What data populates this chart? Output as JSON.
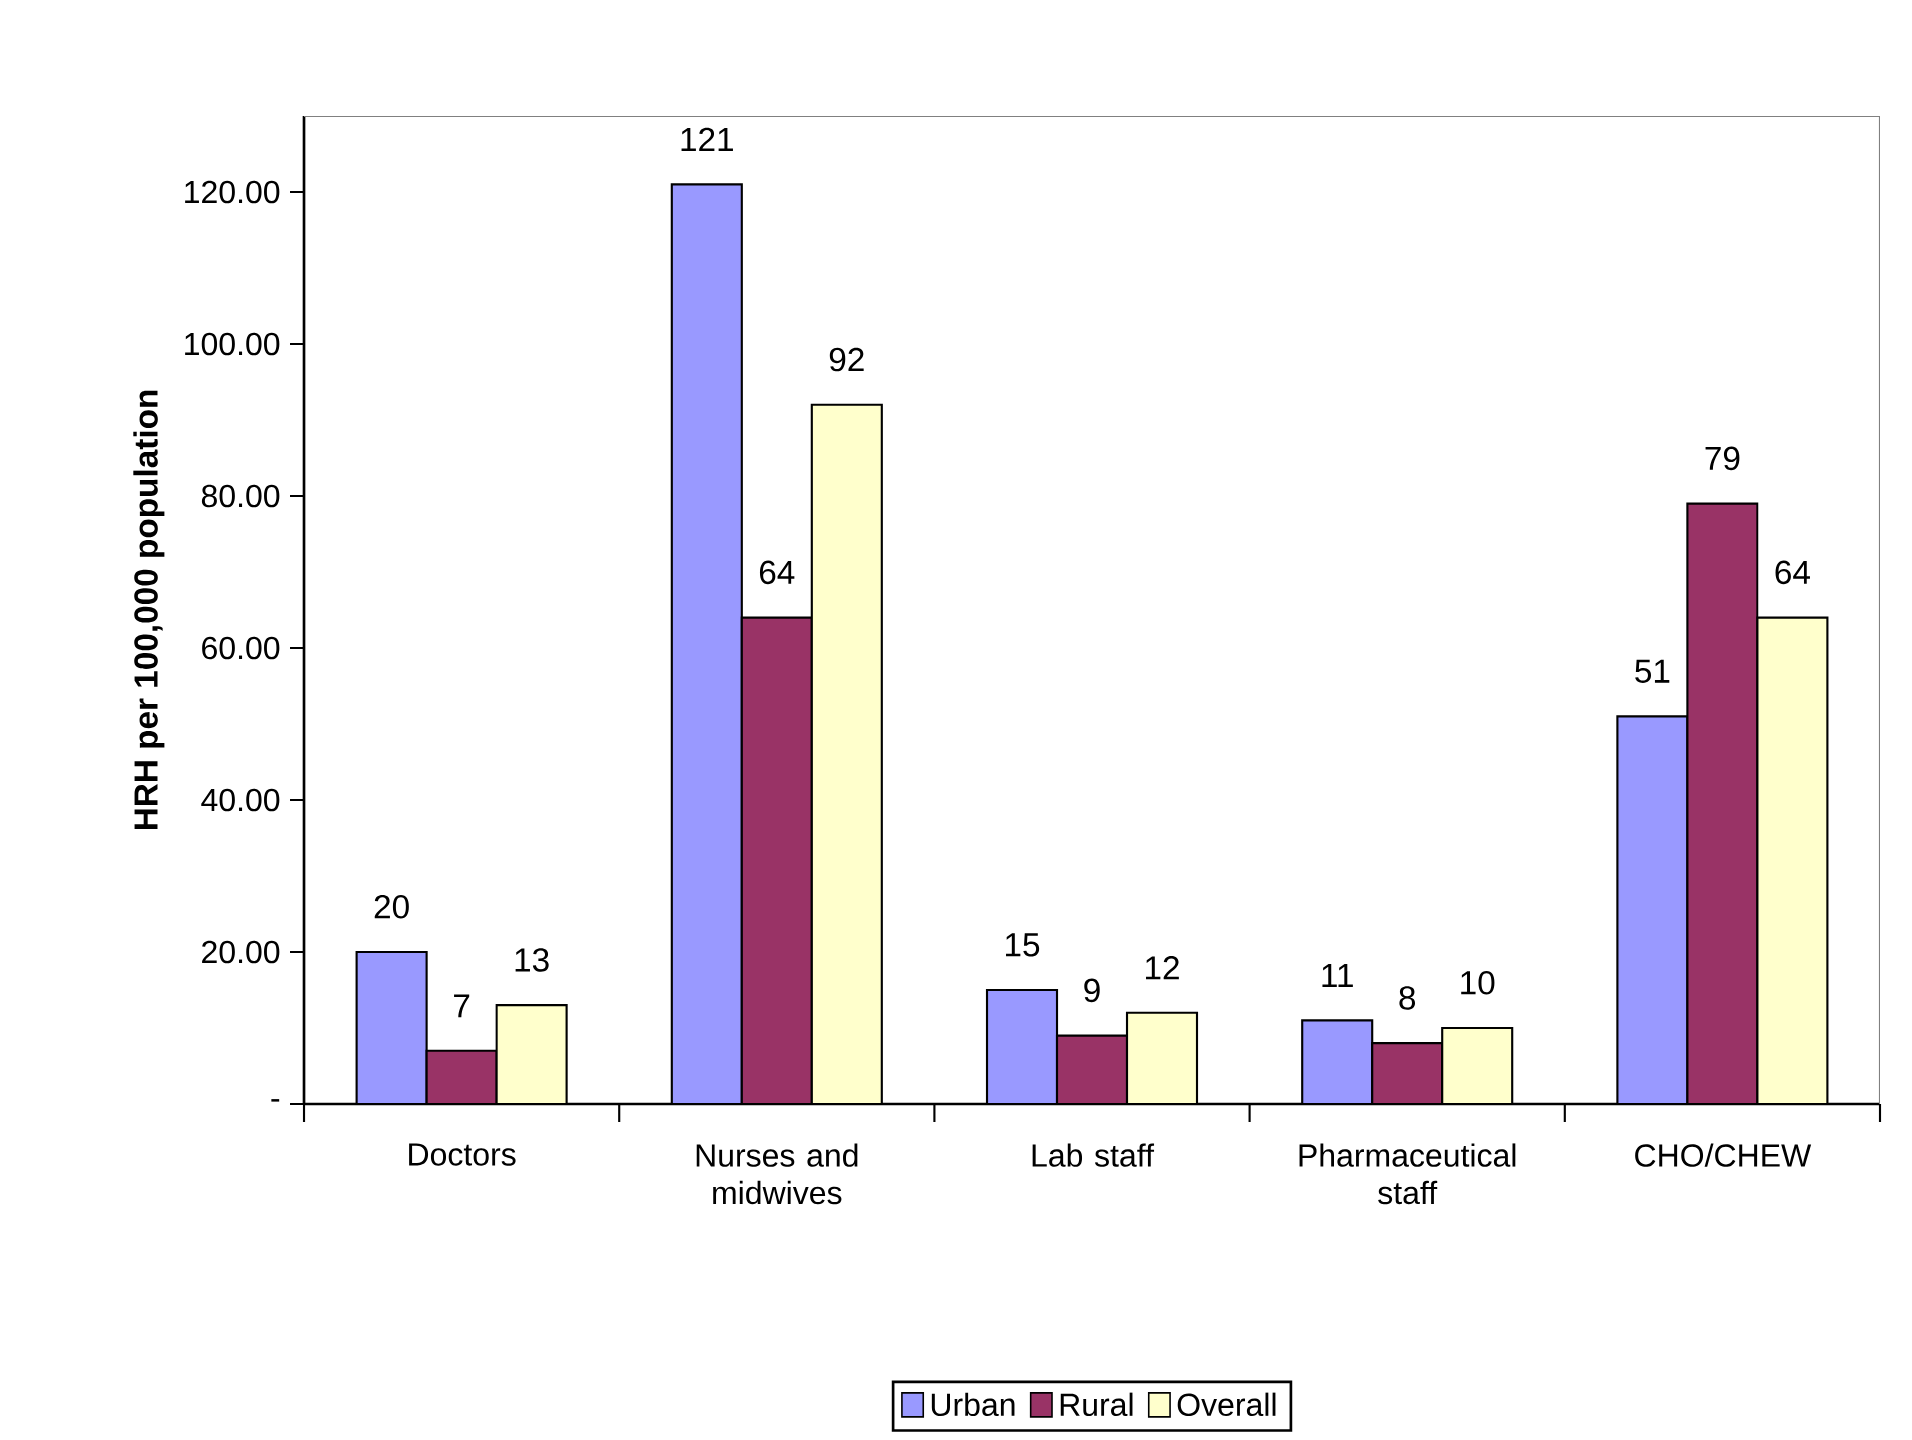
{
  "chart_data": {
    "type": "bar",
    "ylabel": "HRH per 100,000 population",
    "categories": [
      "Doctors",
      "Nurses and midwives",
      "Lab staff",
      "Pharmaceutical staff",
      "CHO/CHEW"
    ],
    "series": [
      {
        "name": "Urban",
        "color": "#9999ff",
        "values": [
          20,
          121,
          15,
          11,
          51
        ]
      },
      {
        "name": "Rural",
        "color": "#993366",
        "values": [
          7,
          64,
          9,
          8,
          79
        ]
      },
      {
        "name": "Overall",
        "color": "#ffffcc",
        "values": [
          13,
          92,
          12,
          10,
          64
        ]
      }
    ],
    "ylim": [
      0,
      130
    ],
    "yticks": [
      {
        "value": 0,
        "label": "-"
      },
      {
        "value": 20,
        "label": "20.00"
      },
      {
        "value": 40,
        "label": "40.00"
      },
      {
        "value": 60,
        "label": "60.00"
      },
      {
        "value": 80,
        "label": "80.00"
      },
      {
        "value": 100,
        "label": "100.00"
      },
      {
        "value": 120,
        "label": "120.00"
      }
    ],
    "data_labels": true,
    "legend": "bottom",
    "grid": false
  }
}
